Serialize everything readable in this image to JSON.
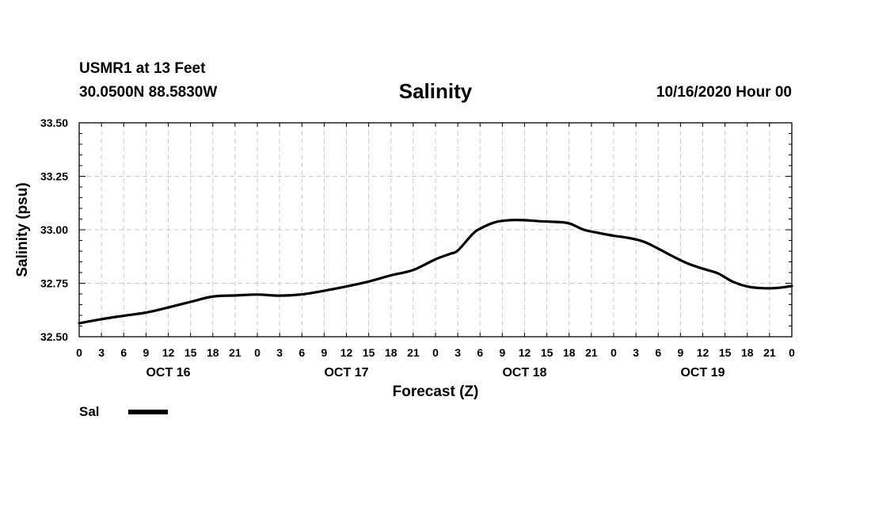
{
  "header": {
    "station": "USMR1 at 13 Feet",
    "coords": "30.0500N 88.5830W",
    "title": "Salinity",
    "runtime": "10/16/2020 Hour 00"
  },
  "chart_data": {
    "type": "line",
    "title": "Salinity",
    "xlabel": "Forecast (Z)",
    "ylabel": "Salinity (psu)",
    "ylim": [
      32.5,
      33.5
    ],
    "yticks": [
      "32.50",
      "32.75",
      "33.00",
      "33.25",
      "33.50"
    ],
    "xlim_hours": [
      0,
      96
    ],
    "xtick_step_hours": 3,
    "xtick_labels": [
      "0",
      "3",
      "6",
      "9",
      "12",
      "15",
      "18",
      "21",
      "0",
      "3",
      "6",
      "9",
      "12",
      "15",
      "18",
      "21",
      "0",
      "3",
      "6",
      "9",
      "12",
      "15",
      "18",
      "21",
      "0",
      "3",
      "6",
      "9",
      "12",
      "15",
      "18",
      "21",
      "0"
    ],
    "day_labels": [
      {
        "label": "OCT 16",
        "hour": 12
      },
      {
        "label": "OCT 17",
        "hour": 36
      },
      {
        "label": "OCT 18",
        "hour": 60
      },
      {
        "label": "OCT 19",
        "hour": 84
      }
    ],
    "grid": true,
    "legend": {
      "position": "bottom-left",
      "entries": [
        "Sal"
      ]
    },
    "series": [
      {
        "name": "Sal",
        "x": [
          0,
          3,
          6,
          9,
          12,
          15,
          18,
          21,
          24,
          27,
          30,
          33,
          36,
          39,
          42,
          45,
          48,
          50,
          51,
          53,
          54,
          56,
          58,
          60,
          62,
          64,
          66,
          68,
          70,
          72,
          74,
          76,
          78,
          80,
          82,
          84,
          86,
          88,
          90,
          92,
          94,
          96
        ],
        "values": [
          32.563,
          32.582,
          32.598,
          32.613,
          32.637,
          32.663,
          32.688,
          32.693,
          32.697,
          32.692,
          32.698,
          32.715,
          32.735,
          32.758,
          32.787,
          32.812,
          32.862,
          32.888,
          32.903,
          32.98,
          33.005,
          33.035,
          33.045,
          33.045,
          33.04,
          33.037,
          33.03,
          33.0,
          32.985,
          32.972,
          32.962,
          32.945,
          32.912,
          32.875,
          32.842,
          32.818,
          32.797,
          32.758,
          32.735,
          32.727,
          32.728,
          32.737
        ]
      }
    ]
  }
}
